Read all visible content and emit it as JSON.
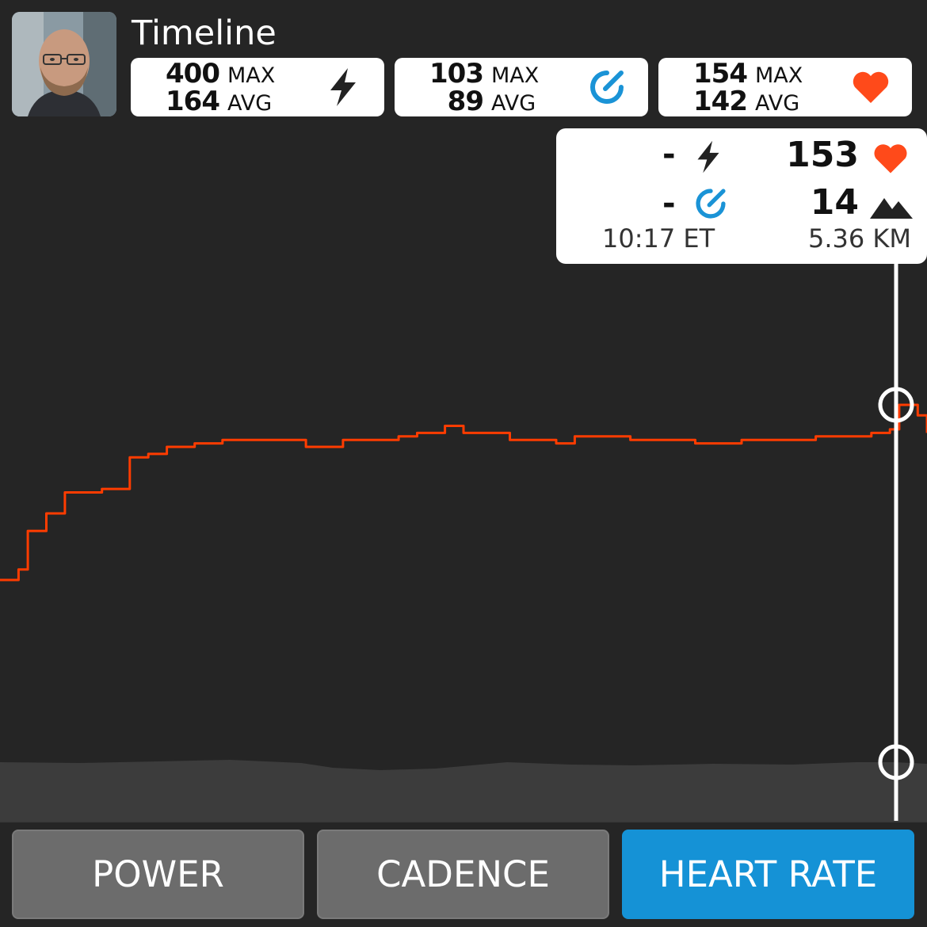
{
  "header": {
    "title": "Timeline"
  },
  "avatar": {
    "alt": "user avatar"
  },
  "summary": {
    "power": {
      "max": "400",
      "max_label": "MAX",
      "avg": "164",
      "avg_label": "AVG",
      "icon": "lightning-bolt-icon"
    },
    "cadence": {
      "max": "103",
      "max_label": "MAX",
      "avg": "89",
      "avg_label": "AVG",
      "icon": "cadence-gauge-icon"
    },
    "heart": {
      "max": "154",
      "max_label": "MAX",
      "avg": "142",
      "avg_label": "AVG",
      "icon": "heart-icon"
    }
  },
  "tooltip": {
    "power": "-",
    "cadence": "-",
    "heart_rate": "153",
    "elevation": "14",
    "time": "10:17 ET",
    "distance": "5.36 KM"
  },
  "tabs": {
    "power": "POWER",
    "cadence": "CADENCE",
    "heart_rate": "HEART RATE"
  },
  "colors": {
    "background": "#252525",
    "line": "#ff3c00",
    "heart": "#ff4a1a",
    "cadence_icon": "#1a93d6",
    "active_tab": "#1592d6",
    "inactive_tab": "#6c6c6c",
    "elevation_fill": "#3c3c3c"
  },
  "chart_data": {
    "type": "line",
    "title": "",
    "xlabel": "",
    "ylabel": "",
    "x_units": "fraction of ride",
    "series": [
      {
        "values_unit": "bpm (approx)",
        "x": [
          0,
          0.02,
          0.03,
          0.05,
          0.07,
          0.09,
          0.11,
          0.14,
          0.16,
          0.18,
          0.21,
          0.24,
          0.27,
          0.3,
          0.33,
          0.35,
          0.37,
          0.4,
          0.43,
          0.45,
          0.48,
          0.5,
          0.52,
          0.55,
          0.57,
          0.6,
          0.62,
          0.65,
          0.68,
          0.7,
          0.73,
          0.75,
          0.78,
          0.8,
          0.83,
          0.86,
          0.88,
          0.91,
          0.93,
          0.94,
          0.96,
          0.97,
          0.99,
          1.0
        ],
        "values": [
          103,
          106,
          117,
          122,
          128,
          128,
          129,
          138,
          139,
          141,
          142,
          143,
          143,
          143,
          141,
          141,
          143,
          143,
          144,
          145,
          147,
          145,
          145,
          143,
          143,
          142,
          144,
          144,
          143,
          143,
          143,
          142,
          142,
          143,
          143,
          143,
          144,
          144,
          144,
          145,
          146,
          153,
          150,
          145
        ]
      }
    ],
    "cursor_x": 0.967,
    "grid": false,
    "legend": "none"
  }
}
